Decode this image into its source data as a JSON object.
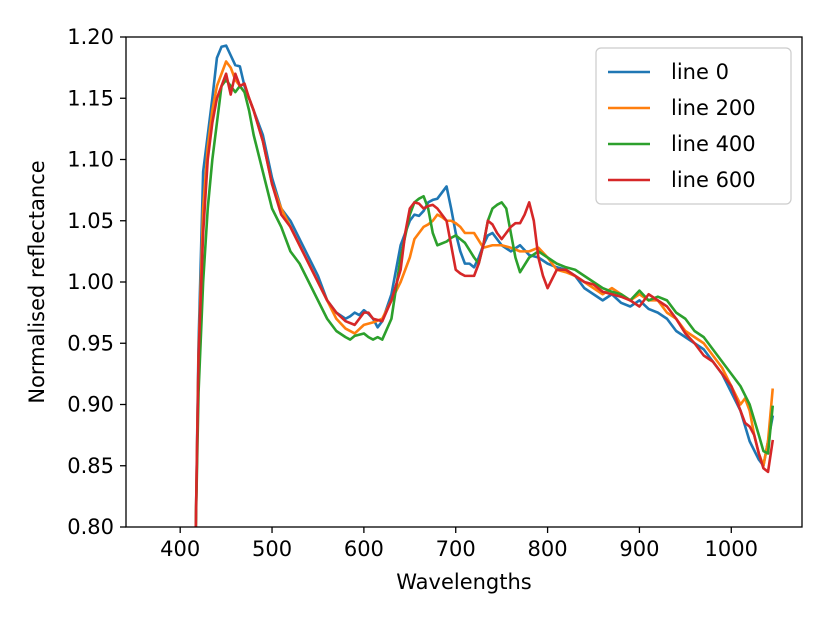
{
  "chart_data": {
    "type": "line",
    "title": "",
    "xlabel": "Wavelengths",
    "ylabel": "Normalised reflectance",
    "xlim": [
      341,
      1077
    ],
    "ylim": [
      0.8,
      1.2
    ],
    "grid": false,
    "legend_position": "top-right",
    "xticks": [
      400,
      500,
      600,
      700,
      800,
      900,
      1000
    ],
    "xtick_labels": [
      "400",
      "500",
      "600",
      "700",
      "800",
      "900",
      "1000"
    ],
    "yticks": [
      0.8,
      0.85,
      0.9,
      0.95,
      1.0,
      1.05,
      1.1,
      1.15,
      1.2
    ],
    "ytick_labels": [
      "0.80",
      "0.85",
      "0.90",
      "0.95",
      "1.00",
      "1.05",
      "1.10",
      "1.15",
      "1.20"
    ],
    "series": [
      {
        "name": "line 0",
        "color": "#1f77b4",
        "x": [
          417,
          420,
          425,
          430,
          435,
          440,
          445,
          450,
          455,
          460,
          465,
          470,
          475,
          480,
          490,
          500,
          510,
          520,
          530,
          540,
          550,
          560,
          570,
          580,
          585,
          590,
          595,
          600,
          605,
          610,
          615,
          620,
          630,
          640,
          650,
          655,
          660,
          665,
          670,
          675,
          680,
          685,
          690,
          695,
          700,
          705,
          710,
          715,
          720,
          725,
          730,
          735,
          740,
          745,
          750,
          760,
          770,
          780,
          790,
          800,
          810,
          820,
          830,
          840,
          850,
          860,
          870,
          880,
          890,
          900,
          910,
          920,
          930,
          940,
          950,
          960,
          970,
          980,
          990,
          1000,
          1010,
          1020,
          1030,
          1035,
          1040,
          1045
        ],
        "y": [
          0.8,
          0.95,
          1.09,
          1.12,
          1.15,
          1.183,
          1.192,
          1.193,
          1.185,
          1.177,
          1.176,
          1.16,
          1.15,
          1.14,
          1.12,
          1.085,
          1.06,
          1.05,
          1.035,
          1.02,
          1.005,
          0.985,
          0.975,
          0.97,
          0.972,
          0.975,
          0.973,
          0.977,
          0.974,
          0.97,
          0.963,
          0.968,
          0.99,
          1.03,
          1.05,
          1.055,
          1.054,
          1.058,
          1.065,
          1.067,
          1.068,
          1.073,
          1.078,
          1.06,
          1.04,
          1.025,
          1.015,
          1.015,
          1.012,
          1.02,
          1.03,
          1.038,
          1.04,
          1.035,
          1.03,
          1.025,
          1.03,
          1.022,
          1.02,
          1.015,
          1.012,
          1.01,
          1.005,
          0.995,
          0.99,
          0.985,
          0.99,
          0.983,
          0.98,
          0.985,
          0.978,
          0.975,
          0.97,
          0.96,
          0.955,
          0.95,
          0.945,
          0.935,
          0.925,
          0.91,
          0.895,
          0.87,
          0.855,
          0.85,
          0.87,
          0.89
        ]
      },
      {
        "name": "line 200",
        "color": "#ff7f0e",
        "x": [
          417,
          420,
          425,
          430,
          435,
          440,
          445,
          450,
          455,
          460,
          465,
          470,
          475,
          480,
          490,
          500,
          510,
          520,
          530,
          540,
          550,
          560,
          570,
          580,
          590,
          600,
          605,
          610,
          620,
          630,
          640,
          645,
          650,
          655,
          660,
          665,
          670,
          675,
          680,
          685,
          690,
          695,
          700,
          705,
          710,
          720,
          730,
          740,
          750,
          760,
          770,
          780,
          790,
          800,
          810,
          820,
          830,
          840,
          850,
          860,
          870,
          880,
          890,
          900,
          910,
          920,
          930,
          940,
          950,
          960,
          970,
          980,
          990,
          1000,
          1010,
          1015,
          1020,
          1025,
          1030,
          1035,
          1040,
          1045
        ],
        "y": [
          0.8,
          0.94,
          1.06,
          1.11,
          1.14,
          1.16,
          1.17,
          1.18,
          1.175,
          1.165,
          1.16,
          1.155,
          1.15,
          1.14,
          1.115,
          1.08,
          1.06,
          1.045,
          1.03,
          1.015,
          1.0,
          0.985,
          0.97,
          0.962,
          0.958,
          0.965,
          0.966,
          0.967,
          0.97,
          0.985,
          1.0,
          1.01,
          1.02,
          1.035,
          1.04,
          1.045,
          1.047,
          1.05,
          1.055,
          1.053,
          1.05,
          1.05,
          1.048,
          1.045,
          1.04,
          1.04,
          1.028,
          1.03,
          1.03,
          1.028,
          1.025,
          1.025,
          1.028,
          1.02,
          1.01,
          1.008,
          1.005,
          1.0,
          0.995,
          0.99,
          0.995,
          0.99,
          0.985,
          0.99,
          0.985,
          0.985,
          0.975,
          0.97,
          0.96,
          0.955,
          0.95,
          0.94,
          0.93,
          0.915,
          0.9,
          0.905,
          0.895,
          0.875,
          0.86,
          0.85,
          0.87,
          0.912
        ]
      },
      {
        "name": "line 400",
        "color": "#2ca02c",
        "x": [
          417,
          420,
          425,
          430,
          435,
          440,
          445,
          450,
          455,
          460,
          465,
          470,
          475,
          480,
          490,
          500,
          510,
          520,
          530,
          540,
          550,
          560,
          570,
          580,
          585,
          590,
          600,
          605,
          610,
          615,
          620,
          630,
          640,
          650,
          655,
          660,
          665,
          670,
          675,
          680,
          690,
          695,
          700,
          705,
          710,
          720,
          725,
          730,
          735,
          740,
          745,
          750,
          755,
          760,
          765,
          770,
          780,
          790,
          800,
          810,
          820,
          830,
          840,
          850,
          860,
          870,
          880,
          890,
          900,
          910,
          920,
          930,
          940,
          950,
          960,
          970,
          980,
          990,
          1000,
          1010,
          1020,
          1030,
          1035,
          1040,
          1045
        ],
        "y": [
          0.8,
          0.91,
          1.0,
          1.06,
          1.1,
          1.13,
          1.16,
          1.165,
          1.16,
          1.155,
          1.16,
          1.155,
          1.14,
          1.12,
          1.09,
          1.06,
          1.045,
          1.025,
          1.015,
          1.0,
          0.985,
          0.97,
          0.96,
          0.955,
          0.953,
          0.956,
          0.958,
          0.955,
          0.953,
          0.955,
          0.953,
          0.97,
          1.02,
          1.055,
          1.065,
          1.068,
          1.07,
          1.06,
          1.04,
          1.03,
          1.033,
          1.036,
          1.038,
          1.035,
          1.032,
          1.02,
          1.015,
          1.03,
          1.05,
          1.06,
          1.063,
          1.065,
          1.06,
          1.04,
          1.02,
          1.008,
          1.02,
          1.025,
          1.02,
          1.015,
          1.012,
          1.01,
          1.005,
          1.0,
          0.995,
          0.992,
          0.99,
          0.985,
          0.993,
          0.985,
          0.988,
          0.985,
          0.975,
          0.97,
          0.96,
          0.955,
          0.945,
          0.935,
          0.925,
          0.915,
          0.9,
          0.875,
          0.862,
          0.86,
          0.898
        ]
      },
      {
        "name": "line 600",
        "color": "#d62728",
        "x": [
          417,
          420,
          425,
          430,
          435,
          440,
          445,
          450,
          455,
          460,
          465,
          470,
          475,
          480,
          490,
          500,
          510,
          520,
          530,
          540,
          550,
          560,
          570,
          580,
          590,
          600,
          605,
          610,
          620,
          630,
          640,
          645,
          650,
          655,
          660,
          665,
          670,
          675,
          680,
          685,
          690,
          695,
          700,
          705,
          710,
          720,
          725,
          730,
          735,
          740,
          745,
          750,
          755,
          760,
          765,
          770,
          775,
          780,
          785,
          790,
          795,
          800,
          810,
          820,
          830,
          840,
          850,
          860,
          870,
          880,
          890,
          900,
          910,
          920,
          930,
          940,
          950,
          960,
          970,
          980,
          990,
          1000,
          1010,
          1015,
          1020,
          1025,
          1030,
          1035,
          1040,
          1045
        ],
        "y": [
          0.8,
          0.94,
          1.04,
          1.1,
          1.13,
          1.15,
          1.16,
          1.17,
          1.153,
          1.17,
          1.16,
          1.162,
          1.15,
          1.14,
          1.115,
          1.08,
          1.055,
          1.045,
          1.03,
          1.015,
          1.0,
          0.985,
          0.975,
          0.968,
          0.965,
          0.975,
          0.975,
          0.97,
          0.968,
          0.985,
          1.01,
          1.04,
          1.06,
          1.065,
          1.064,
          1.06,
          1.062,
          1.063,
          1.06,
          1.055,
          1.05,
          1.03,
          1.01,
          1.007,
          1.005,
          1.005,
          1.015,
          1.03,
          1.05,
          1.047,
          1.04,
          1.035,
          1.04,
          1.045,
          1.048,
          1.048,
          1.055,
          1.065,
          1.05,
          1.02,
          1.005,
          0.995,
          1.01,
          1.01,
          1.005,
          1.0,
          0.998,
          0.992,
          0.99,
          0.988,
          0.985,
          0.98,
          0.99,
          0.985,
          0.98,
          0.97,
          0.958,
          0.95,
          0.94,
          0.935,
          0.925,
          0.915,
          0.895,
          0.885,
          0.882,
          0.875,
          0.86,
          0.848,
          0.845,
          0.87
        ]
      }
    ]
  }
}
